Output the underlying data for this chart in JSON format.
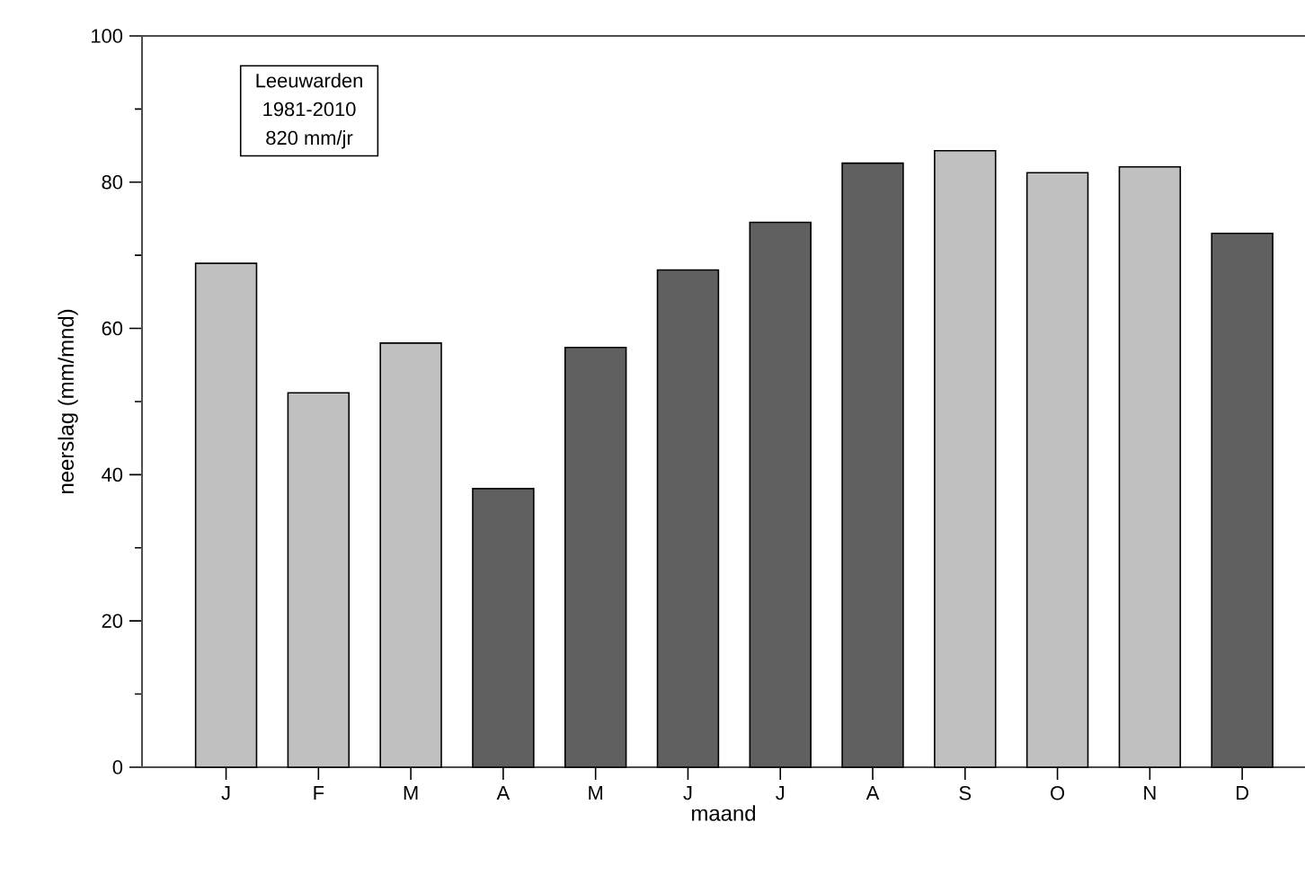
{
  "chart_data": {
    "type": "bar",
    "xlabel": "maand",
    "ylabel": "neerslag (mm/mnd)",
    "annotations": [
      "Leeuwarden",
      "1981-2010",
      "820 mm/jr"
    ],
    "categories": [
      "J",
      "F",
      "M",
      "A",
      "M",
      "J",
      "J",
      "A",
      "S",
      "O",
      "N",
      "D"
    ],
    "values": [
      68.9,
      51.2,
      58.0,
      38.1,
      57.4,
      68.0,
      74.5,
      82.6,
      84.3,
      81.3,
      82.1,
      73.0
    ],
    "colors": [
      "#c0c0c0",
      "#c0c0c0",
      "#c0c0c0",
      "#606060",
      "#606060",
      "#606060",
      "#606060",
      "#606060",
      "#c0c0c0",
      "#c0c0c0",
      "#c0c0c0",
      "#606060"
    ],
    "ylim": [
      0,
      100
    ],
    "yticks": [
      0,
      20,
      40,
      60,
      80,
      100
    ],
    "grid": false
  }
}
